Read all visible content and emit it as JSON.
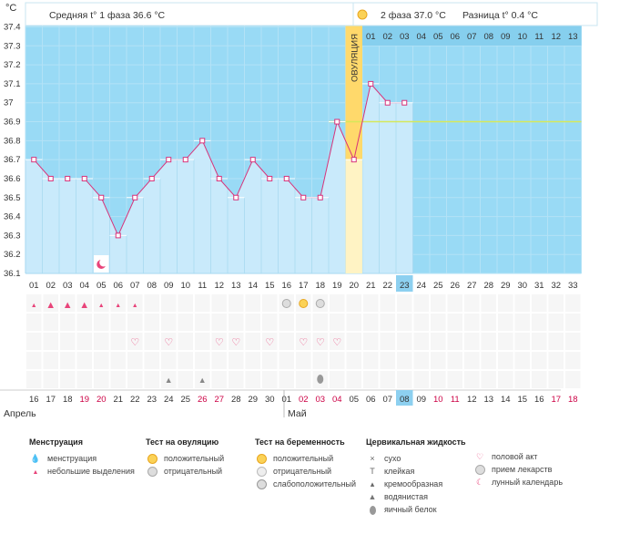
{
  "header": {
    "unit": "°C",
    "phase1": "Средняя t° 1 фаза 36.6 °C",
    "phase2": "2 фаза 37.0 °C",
    "difference": "Разница t° 0.4 °C",
    "ovulation_label": "ОВУЛЯЦИЯ"
  },
  "chart_data": {
    "type": "area",
    "x": [
      "01",
      "02",
      "03",
      "04",
      "05",
      "06",
      "07",
      "08",
      "09",
      "10",
      "11",
      "12",
      "13",
      "14",
      "15",
      "16",
      "17",
      "18",
      "19",
      "20",
      "21",
      "22",
      "23",
      "24",
      "25",
      "26",
      "27",
      "28",
      "29",
      "30",
      "31",
      "32",
      "33"
    ],
    "temperatures": [
      36.7,
      36.6,
      36.6,
      36.6,
      36.5,
      36.3,
      36.5,
      36.6,
      36.7,
      36.7,
      36.8,
      36.6,
      36.5,
      36.7,
      36.6,
      36.6,
      36.5,
      36.5,
      36.9,
      36.7,
      37.1,
      37.0,
      37.0
    ],
    "yticks": [
      "37.4",
      "37.3",
      "37.2",
      "37.1",
      "37",
      "36.9",
      "36.8",
      "36.7",
      "36.6",
      "36.5",
      "36.4",
      "36.3",
      "36.2",
      "36.1"
    ],
    "ylim": [
      36.1,
      37.4
    ],
    "coverline": 36.9,
    "ovulation_day": "20",
    "current_day": "23",
    "phase2_days": [
      "01",
      "02",
      "03",
      "04",
      "05",
      "06",
      "07",
      "08",
      "09",
      "10",
      "11",
      "12",
      "13"
    ],
    "grid": true
  },
  "rows": {
    "menstruation_heavy": [
      "02",
      "03",
      "04"
    ],
    "menstruation_light": [
      "01",
      "05",
      "06",
      "07"
    ],
    "ovulation_test_positive": [
      "17"
    ],
    "ovulation_test_negative": [
      "16",
      "18"
    ],
    "sex_days": [
      "07",
      "09",
      "12",
      "13",
      "15",
      "17",
      "18",
      "19"
    ],
    "watery_days": [
      "09",
      "11"
    ],
    "egg_white_days": [
      "18"
    ],
    "moon_day": "05"
  },
  "calendar": {
    "dates": [
      {
        "d": "16",
        "red": false
      },
      {
        "d": "17",
        "red": false
      },
      {
        "d": "18",
        "red": false
      },
      {
        "d": "19",
        "red": true
      },
      {
        "d": "20",
        "red": true
      },
      {
        "d": "21",
        "red": false
      },
      {
        "d": "22",
        "red": false
      },
      {
        "d": "23",
        "red": false
      },
      {
        "d": "24",
        "red": false
      },
      {
        "d": "25",
        "red": false
      },
      {
        "d": "26",
        "red": true
      },
      {
        "d": "27",
        "red": true
      },
      {
        "d": "28",
        "red": false
      },
      {
        "d": "29",
        "red": false
      },
      {
        "d": "30",
        "red": false
      },
      {
        "d": "01",
        "red": false
      },
      {
        "d": "02",
        "red": true
      },
      {
        "d": "03",
        "red": true
      },
      {
        "d": "04",
        "red": true
      },
      {
        "d": "05",
        "red": false
      },
      {
        "d": "06",
        "red": false
      },
      {
        "d": "07",
        "red": false
      },
      {
        "d": "08",
        "red": false
      },
      {
        "d": "09",
        "red": false
      },
      {
        "d": "10",
        "red": true
      },
      {
        "d": "11",
        "red": true
      },
      {
        "d": "12",
        "red": false
      },
      {
        "d": "13",
        "red": false
      },
      {
        "d": "14",
        "red": false
      },
      {
        "d": "15",
        "red": false
      },
      {
        "d": "16",
        "red": false
      },
      {
        "d": "17",
        "red": true
      },
      {
        "d": "18",
        "red": true
      }
    ],
    "month1": "Апрель",
    "month2": "Май"
  },
  "legend": {
    "menstruation": {
      "title": "Менструация",
      "items": [
        "менструация",
        "небольшие выделения"
      ]
    },
    "ovulation_test": {
      "title": "Тест на овуляцию",
      "items": [
        "положительный",
        "отрицательный"
      ]
    },
    "pregnancy_test": {
      "title": "Тест на беременность",
      "items": [
        "положительный",
        "отрицательный",
        "слабоположительный"
      ]
    },
    "cervical": {
      "title": "Цервикальная жидкость",
      "items": [
        "сухо",
        "клейкая",
        "кремообразная",
        "водянистая",
        "яичный белок"
      ]
    },
    "other": {
      "items": [
        "половой акт",
        "прием лекарств",
        "лунный календарь"
      ]
    }
  },
  "colors": {
    "sky": "#99daf5",
    "grid": "#bfe7f8",
    "fill": "#c9eafb",
    "fill_border": "#8fcbe8",
    "line": "#d8337a",
    "coverline": "#d6e85a",
    "ovulation": "#ffd96b",
    "ovulation_low": "#fff3c4",
    "current": "#8dd0f0",
    "red": "#cc0044",
    "pink": "#e8447a"
  }
}
